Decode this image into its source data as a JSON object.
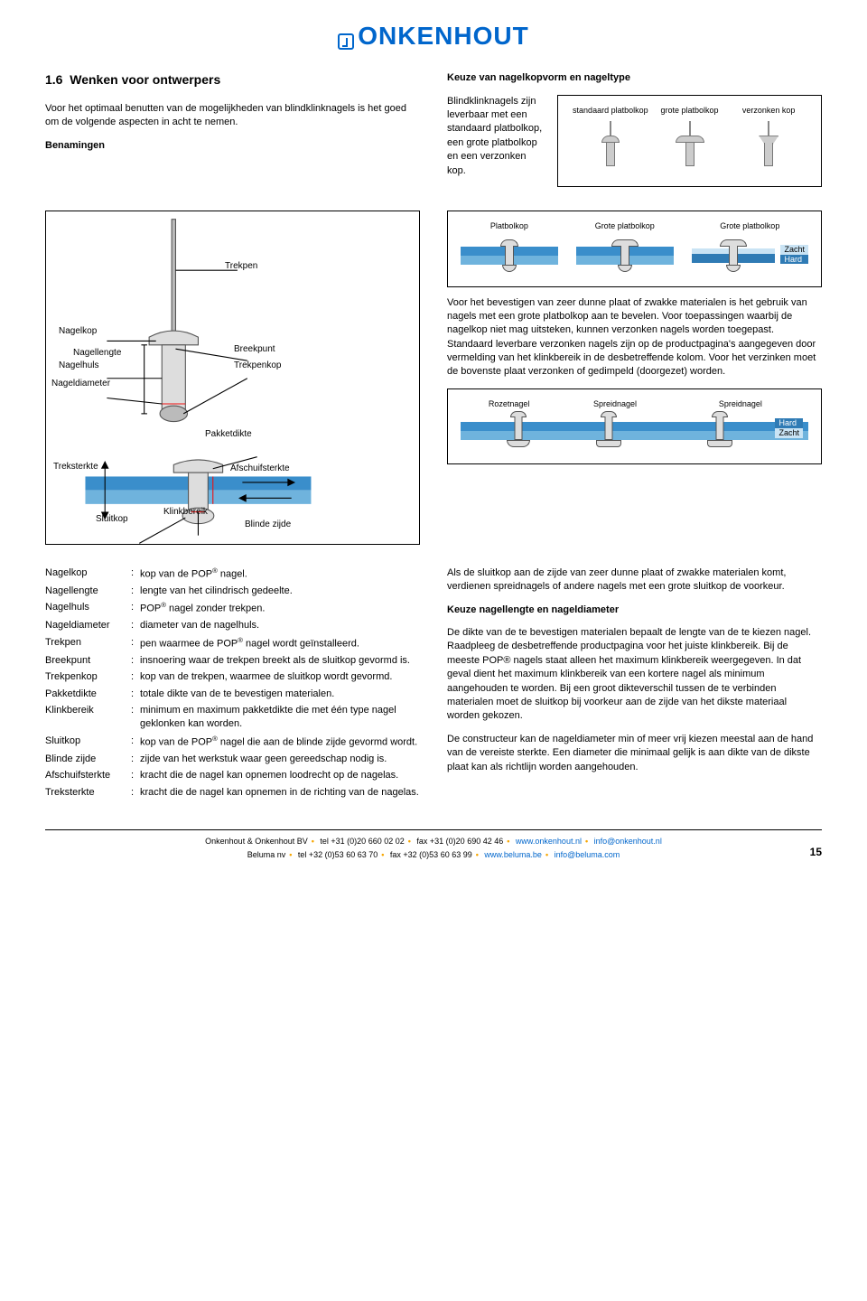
{
  "logo": "ONKENHOUT",
  "section": {
    "number": "1.6",
    "title": "Wenken voor ontwerpers",
    "intro": "Voor het optimaal benutten van de mogelijkheden van blindklinknagels is het goed om de volgende aspecten in acht te nemen.",
    "sub_heading": "Benamingen"
  },
  "head_choice": {
    "title": "Keuze van nagelkopvorm en nageltype",
    "text": "Blindklinknagels zijn leverbaar met een standaard platbolkop, een grote platbolkop en een verzonken kop.",
    "labels": {
      "standard": "standaard platbolkop",
      "large": "grote platbolkop",
      "countersunk": "verzonken kop"
    }
  },
  "head_compare": {
    "platbolkop": "Platbolkop",
    "grote": "Grote platbolkop",
    "grote2": "Grote platbolkop",
    "zacht": "Zacht",
    "hard": "Hard"
  },
  "anatomy": {
    "trekpen": "Trekpen",
    "nagelkop": "Nagelkop",
    "nagellengte": "Nagellengte",
    "breekpunt": "Breekpunt",
    "nagelhuls": "Nagelhuls",
    "trekpenkop": "Trekpenkop",
    "nageldiameter": "Nageldiameter",
    "pakketdikte": "Pakketdikte",
    "treksterkte": "Treksterkte",
    "afschuifsterkte": "Afschuifsterkte",
    "klinkbereik": "Klinkbereik",
    "sluitkop": "Sluitkop",
    "blinde_zijde": "Blinde zijde"
  },
  "body_text_1": "Voor het bevestigen van zeer dunne plaat of zwakke materialen is het gebruik van nagels met een grote platbolkop aan te bevelen. Voor toepassingen waarbij de nagelkop niet mag uitsteken, kunnen verzonken nagels worden toegepast. Standaard leverbare verzonken nagels zijn op de productpagina's aangegeven door vermelding van het klinkbereik in de desbetreffende kolom. Voor het verzinken moet de bovenste plaat verzonken of gedimpeld (doorgezet) worden.",
  "spread": {
    "rozetnagel": "Rozetnagel",
    "spreidnagel": "Spreidnagel",
    "spreidnagel2": "Spreidnagel",
    "hard": "Hard",
    "zacht": "Zacht"
  },
  "definitions": [
    {
      "term": "Nagelkop",
      "desc": "kop van de POP® nagel."
    },
    {
      "term": "Nagellengte",
      "desc": "lengte van het cilindrisch gedeelte."
    },
    {
      "term": "Nagelhuls",
      "desc": "POP® nagel zonder trekpen."
    },
    {
      "term": "Nageldiameter",
      "desc": "diameter van de nagelhuls."
    },
    {
      "term": "Trekpen",
      "desc": "pen waarmee de POP® nagel wordt geïnstalleerd."
    },
    {
      "term": "Breekpunt",
      "desc": "insnoering waar de trekpen breekt als de sluitkop gevormd is."
    },
    {
      "term": "Trekpenkop",
      "desc": "kop van de trekpen, waarmee de sluitkop wordt gevormd."
    },
    {
      "term": "Pakketdikte",
      "desc": "totale dikte van de te bevestigen materialen."
    },
    {
      "term": "Klinkbereik",
      "desc": "minimum en maximum pakketdikte die met één type nagel geklonken kan worden."
    },
    {
      "term": "Sluitkop",
      "desc": "kop van de POP® nagel die aan de blinde zijde gevormd wordt."
    },
    {
      "term": "Blinde zijde",
      "desc": "zijde van het werkstuk waar geen gereedschap nodig is."
    },
    {
      "term": "Afschuifsterkte",
      "desc": "kracht die de nagel kan opnemen loodrecht op de nagelas."
    },
    {
      "term": "Treksterkte",
      "desc": "kracht die de nagel kan opnemen in de richting van de nagelas."
    }
  ],
  "right_para_2": "Als de sluitkop aan de zijde van zeer dunne plaat of zwakke materialen komt, verdienen spreidnagels of andere nagels met een grote sluitkop de voorkeur.",
  "right_heading_2": "Keuze nagellengte en nageldiameter",
  "right_para_3": "De dikte van de te bevestigen materialen bepaalt de lengte van de te kiezen nagel. Raadpleeg de desbetreffende productpagina voor het juiste klinkbereik. Bij de meeste POP® nagels staat alleen het maximum klinkbereik weergegeven. In dat geval dient het maximum klinkbereik van een kortere nagel als minimum aangehouden te worden. Bij een groot dikteverschil tussen de te verbinden materialen moet de sluitkop bij voorkeur aan de zijde van het dikste materiaal worden gekozen.",
  "right_para_4": "De constructeur kan de nageldiameter min of meer vrij kiezen meestal aan de hand van de vereiste sterkte. Een diameter die minimaal gelijk is aan dikte van de dikste plaat kan als richtlijn worden aangehouden.",
  "footer": {
    "line1_a": "Onkenhout & Onkenhout BV",
    "line1_b": "tel +31 (0)20 660 02 02",
    "line1_c": "fax +31 (0)20 690 42 46",
    "line1_d": "www.onkenhout.nl",
    "line1_e": "info@onkenhout.nl",
    "line2_a": "Beluma nv",
    "line2_b": "tel +32 (0)53 60 63 70",
    "line2_c": "fax +32 (0)53 60 63 99",
    "line2_d": "www.beluma.be",
    "line2_e": "info@beluma.com",
    "page": "15"
  },
  "colors": {
    "brand_blue": "#0066cc",
    "plate_dark": "#3a8ecb",
    "plate_light": "#6fb3dd",
    "accent_orange": "#f7a600"
  }
}
